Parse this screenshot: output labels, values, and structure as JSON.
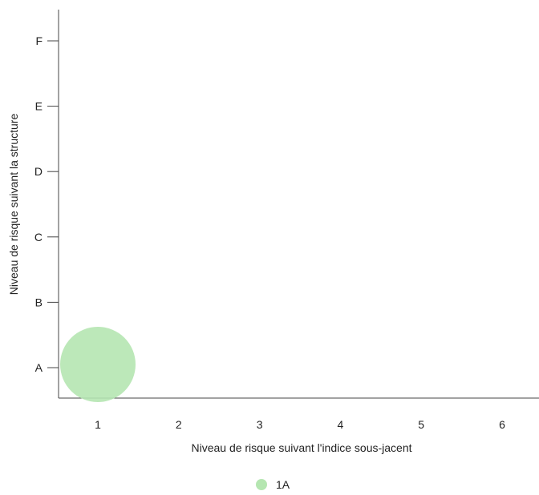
{
  "chart_data": {
    "type": "scatter",
    "title": "",
    "xlabel": "Niveau de risque suivant l'indice sous-jacent",
    "ylabel": "Niveau de risque suivant la structure",
    "x_categories": [
      "1",
      "2",
      "3",
      "4",
      "5",
      "6"
    ],
    "y_categories": [
      "A",
      "B",
      "C",
      "D",
      "E",
      "F"
    ],
    "series": [
      {
        "name": "1A",
        "color": "#b5e6b1",
        "points": [
          {
            "x": "1",
            "y": "A"
          }
        ]
      }
    ],
    "legend": {
      "position": "bottom-center",
      "entries": [
        "1A"
      ]
    },
    "grid": false,
    "colors": {
      "axis": "#444444",
      "text": "#222222"
    }
  }
}
